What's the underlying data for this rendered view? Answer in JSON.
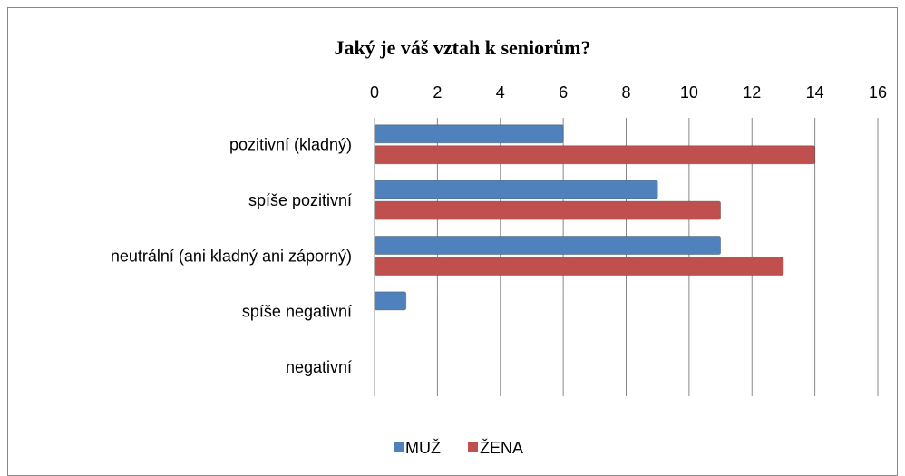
{
  "chart_data": {
    "type": "bar",
    "orientation": "horizontal",
    "title": "Jaký je váš vztah k seniorům?",
    "categories": [
      "pozitivní (kladný)",
      "spíše pozitivní",
      "neutrální (ani kladný ani záporný)",
      "spíše negativní",
      "negativní"
    ],
    "series": [
      {
        "name": "MUŽ",
        "color": "#4f81bd",
        "values": [
          6,
          9,
          11,
          1,
          0
        ]
      },
      {
        "name": "ŽENA",
        "color": "#c0504d",
        "values": [
          14,
          11,
          13,
          0,
          0
        ]
      }
    ],
    "xlim": [
      0,
      16
    ],
    "xticks": [
      0,
      2,
      4,
      6,
      8,
      10,
      12,
      14,
      16
    ],
    "grid": true,
    "legend": "bottom"
  }
}
